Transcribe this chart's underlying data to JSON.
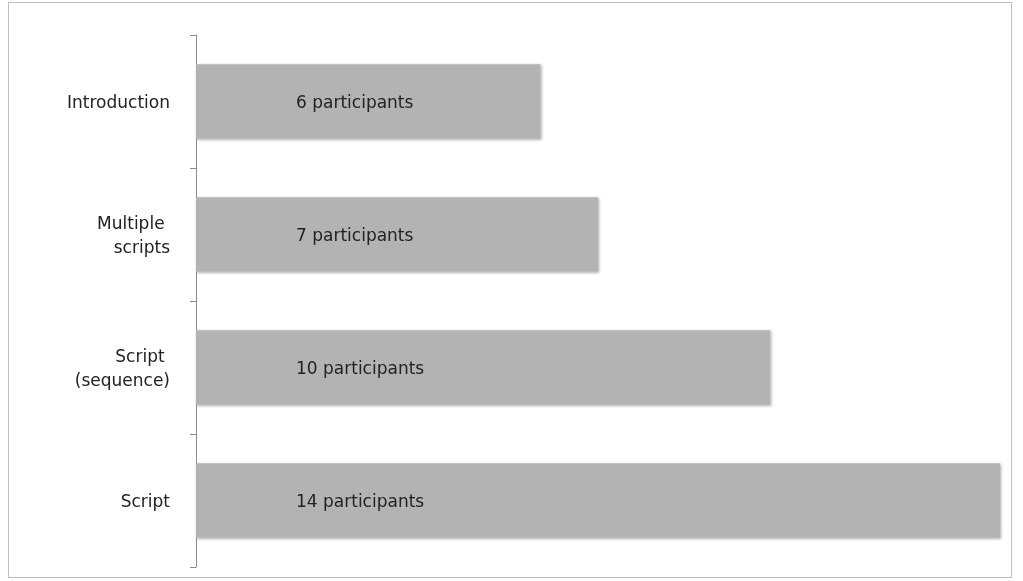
{
  "chart_data": {
    "type": "bar",
    "orientation": "horizontal",
    "categories": [
      "Introduction",
      "Multiple scripts",
      "Script (sequence)",
      "Script"
    ],
    "values": [
      6,
      7,
      10,
      14
    ],
    "value_labels": [
      "6 participants",
      "7 participants",
      "10 participants",
      "14 participants"
    ],
    "color": "#b3b3b3",
    "xlim": [
      0,
      14
    ],
    "tick_labels": "y"
  }
}
